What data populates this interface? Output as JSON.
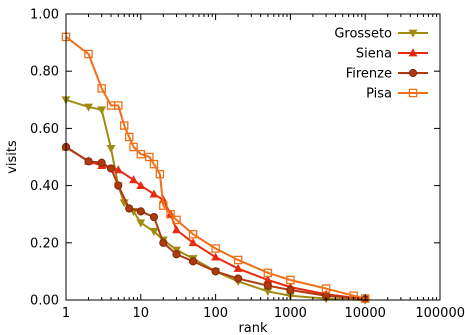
{
  "chart_data": {
    "type": "line",
    "title": "",
    "xlabel": "rank",
    "ylabel": "visits",
    "xscale": "log",
    "xlim": [
      1,
      100000
    ],
    "ylim": [
      0,
      1
    ],
    "xticks": [
      {
        "value": 1,
        "label": "1"
      },
      {
        "value": 10,
        "label": "10"
      },
      {
        "value": 100,
        "label": "100"
      },
      {
        "value": 1000,
        "label": "1000"
      },
      {
        "value": 10000,
        "label": "10000"
      },
      {
        "value": 100000,
        "label": "100000"
      }
    ],
    "yticks": [
      {
        "value": 0,
        "label": "0.00"
      },
      {
        "value": 0.2,
        "label": "0.20"
      },
      {
        "value": 0.4,
        "label": "0.40"
      },
      {
        "value": 0.6,
        "label": "0.60"
      },
      {
        "value": 0.8,
        "label": "0.80"
      },
      {
        "value": 1.0,
        "label": "1.00"
      }
    ],
    "grid": false,
    "legend_position": "top-right",
    "series": [
      {
        "name": "Grosseto",
        "color": "#a08a10",
        "marker": "triangle-down",
        "points": [
          [
            1,
            0.7
          ],
          [
            2,
            0.675
          ],
          [
            3,
            0.665
          ],
          [
            4,
            0.53
          ],
          [
            5,
            0.4
          ],
          [
            6,
            0.34
          ],
          [
            8,
            0.31
          ],
          [
            10,
            0.27
          ],
          [
            15,
            0.24
          ],
          [
            20,
            0.21
          ],
          [
            30,
            0.175
          ],
          [
            50,
            0.145
          ],
          [
            100,
            0.1
          ],
          [
            200,
            0.065
          ],
          [
            500,
            0.03
          ],
          [
            1000,
            0.015
          ],
          [
            3000,
            0.005
          ],
          [
            10000,
            0.0
          ]
        ]
      },
      {
        "name": "Siena",
        "color": "#e82a10",
        "marker": "triangle-up",
        "points": [
          [
            1,
            0.535
          ],
          [
            2,
            0.485
          ],
          [
            3,
            0.47
          ],
          [
            5,
            0.455
          ],
          [
            8,
            0.42
          ],
          [
            10,
            0.4
          ],
          [
            15,
            0.37
          ],
          [
            20,
            0.35
          ],
          [
            25,
            0.3
          ],
          [
            30,
            0.245
          ],
          [
            50,
            0.2
          ],
          [
            100,
            0.15
          ],
          [
            200,
            0.11
          ],
          [
            500,
            0.07
          ],
          [
            1000,
            0.045
          ],
          [
            3000,
            0.02
          ],
          [
            10000,
            0.003
          ]
        ]
      },
      {
        "name": "Firenze",
        "color": "#b03a10",
        "marker": "circle",
        "points": [
          [
            1,
            0.535
          ],
          [
            2,
            0.485
          ],
          [
            3,
            0.48
          ],
          [
            4,
            0.46
          ],
          [
            5,
            0.4
          ],
          [
            7,
            0.32
          ],
          [
            10,
            0.31
          ],
          [
            15,
            0.29
          ],
          [
            20,
            0.2
          ],
          [
            30,
            0.16
          ],
          [
            50,
            0.135
          ],
          [
            100,
            0.1
          ],
          [
            200,
            0.075
          ],
          [
            500,
            0.05
          ],
          [
            1000,
            0.035
          ],
          [
            3000,
            0.015
          ],
          [
            10000,
            0.003
          ]
        ]
      },
      {
        "name": "Pisa",
        "color": "#f07018",
        "marker": "square",
        "points": [
          [
            1,
            0.92
          ],
          [
            2,
            0.86
          ],
          [
            3,
            0.74
          ],
          [
            4,
            0.68
          ],
          [
            5,
            0.68
          ],
          [
            6,
            0.61
          ],
          [
            7,
            0.57
          ],
          [
            8,
            0.535
          ],
          [
            10,
            0.51
          ],
          [
            13,
            0.5
          ],
          [
            15,
            0.475
          ],
          [
            18,
            0.44
          ],
          [
            20,
            0.33
          ],
          [
            25,
            0.3
          ],
          [
            30,
            0.28
          ],
          [
            50,
            0.23
          ],
          [
            100,
            0.18
          ],
          [
            200,
            0.14
          ],
          [
            500,
            0.095
          ],
          [
            1000,
            0.07
          ],
          [
            3000,
            0.04
          ],
          [
            7000,
            0.015
          ],
          [
            10000,
            0.005
          ]
        ]
      }
    ]
  }
}
